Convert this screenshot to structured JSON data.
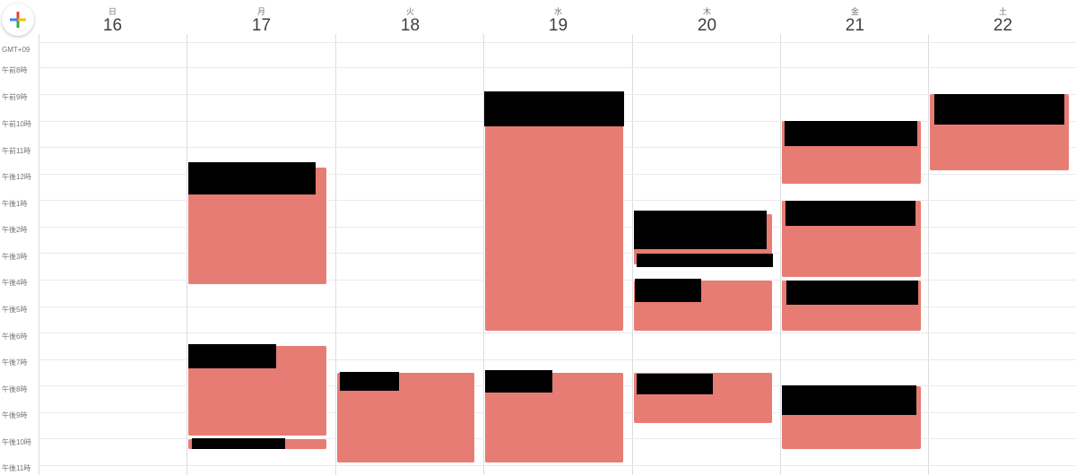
{
  "header": {
    "create_button_icon": "plus-icon",
    "days": [
      {
        "weekday": "日",
        "date": "16"
      },
      {
        "weekday": "月",
        "date": "17"
      },
      {
        "weekday": "火",
        "date": "18"
      },
      {
        "weekday": "水",
        "date": "19"
      },
      {
        "weekday": "木",
        "date": "20"
      },
      {
        "weekday": "金",
        "date": "21"
      },
      {
        "weekday": "土",
        "date": "22"
      }
    ]
  },
  "timezone": "GMT+09",
  "hours": [
    "午前8時",
    "午前9時",
    "午前10時",
    "午前11時",
    "午後12時",
    "午後1時",
    "午後2時",
    "午後3時",
    "午後4時",
    "午後5時",
    "午後6時",
    "午後7時",
    "午後8時",
    "午後9時",
    "午後10時",
    "午後11時"
  ],
  "colors": {
    "event": "#e67c73",
    "redaction": "#000000",
    "grid": "#dadce0",
    "fab_blue": "#4285f4",
    "fab_red": "#ea4335",
    "fab_yellow": "#fbbc04",
    "fab_green": "#34a853"
  },
  "events_note_redacted": true
}
